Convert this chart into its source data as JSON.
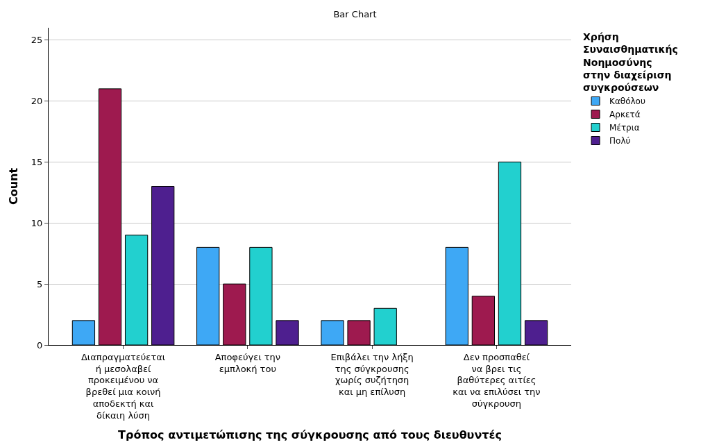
{
  "chart_data": {
    "type": "bar",
    "title": "Bar Chart",
    "xlabel": "Τρόπος αντιμετώπισης της σύγκρουσης από τους διευθυντές",
    "ylabel": "Count",
    "legend_title": "Χρήση\nΣυναισθηματικής\nΝοημοσύνης\nστην διαχείριση\nσυγκρούσεων",
    "categories": [
      "Διαπραγματεύεται\nή μεσολαβεί\nπροκειμένου να\nβρεθεί μια κοινή\nαποδεκτή και\nδίκαιη λύση",
      "Αποφεύγει την\nεμπλοκή του",
      "Επιβάλει την λήξη\nτης σύγκρουσης\nχωρίς συζήτηση\nκαι μη επίλυση",
      "Δεν προσπαθεί\nνα βρει τις\nβαθύτερες αιτίες\nκαι να επιλύσει την\nσύγκρουση"
    ],
    "series": [
      {
        "name": "Καθόλου",
        "color": "#3ea8f5",
        "values": [
          2,
          8,
          2,
          8
        ]
      },
      {
        "name": "Αρκετά",
        "color": "#9e1a4f",
        "values": [
          21,
          5,
          2,
          4
        ]
      },
      {
        "name": "Μέτρια",
        "color": "#22d0cf",
        "values": [
          9,
          8,
          3,
          15
        ]
      },
      {
        "name": "Πολύ",
        "color": "#4e1f8f",
        "values": [
          13,
          2,
          null,
          2
        ]
      }
    ],
    "ylim": [
      0,
      26
    ],
    "yticks": [
      0,
      5,
      10,
      15,
      20,
      25
    ],
    "grid": "y",
    "legend": "top right"
  }
}
